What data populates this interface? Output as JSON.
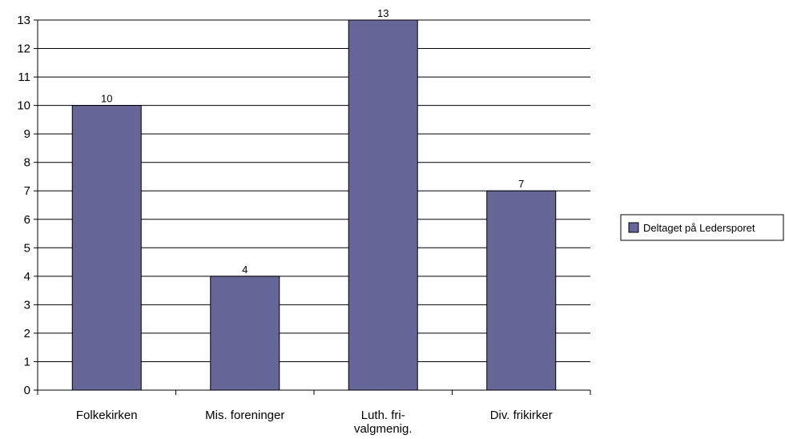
{
  "chart_data": {
    "type": "bar",
    "categories": [
      [
        "Folkekirken"
      ],
      [
        "Mis. foreninger"
      ],
      [
        "Luth. fri-",
        "valgmenig."
      ],
      [
        "Div. frikirker"
      ]
    ],
    "series": [
      {
        "name": "Deltaget på Ledersporet",
        "values": [
          10,
          4,
          13,
          7
        ],
        "color": "#666699"
      }
    ],
    "ylim": [
      0,
      13
    ],
    "yticks": [
      0,
      1,
      2,
      3,
      4,
      5,
      6,
      7,
      8,
      9,
      10,
      11,
      12,
      13
    ],
    "grid": true,
    "legend": "right",
    "title": "",
    "xlabel": "",
    "ylabel": ""
  }
}
